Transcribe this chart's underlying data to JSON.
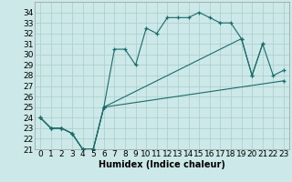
{
  "xlabel": "Humidex (Indice chaleur)",
  "background_color": "#cce8e8",
  "grid_color": "#aacccc",
  "line_color": "#1a6b6b",
  "xlim": [
    -0.5,
    23.5
  ],
  "ylim": [
    21,
    35
  ],
  "yticks": [
    21,
    22,
    23,
    24,
    25,
    26,
    27,
    28,
    29,
    30,
    31,
    32,
    33,
    34
  ],
  "xticks": [
    0,
    1,
    2,
    3,
    4,
    5,
    6,
    7,
    8,
    9,
    10,
    11,
    12,
    13,
    14,
    15,
    16,
    17,
    18,
    19,
    20,
    21,
    22,
    23
  ],
  "line1_x": [
    0,
    1,
    2,
    3,
    4,
    5,
    6,
    7,
    8,
    9,
    10,
    11,
    12,
    13,
    14,
    15,
    16,
    17,
    18,
    19,
    20,
    21,
    22,
    23
  ],
  "line1_y": [
    24,
    23,
    23,
    22.5,
    21,
    21,
    25,
    30.5,
    30.5,
    29,
    32.5,
    32,
    33.5,
    33.5,
    33.5,
    34,
    33.5,
    33,
    33,
    31.5,
    28,
    31,
    28,
    28.5
  ],
  "line2_x": [
    0,
    1,
    2,
    3,
    4,
    5,
    6,
    19,
    20,
    21
  ],
  "line2_y": [
    24,
    23,
    23,
    22.5,
    21,
    21,
    25,
    31.5,
    28,
    31
  ],
  "line3_x": [
    0,
    1,
    2,
    3,
    4,
    5,
    6,
    23
  ],
  "line3_y": [
    24,
    23,
    23,
    22.5,
    21,
    21,
    25,
    27.5
  ],
  "font_size_xlabel": 7,
  "font_size_ticks": 6.5
}
